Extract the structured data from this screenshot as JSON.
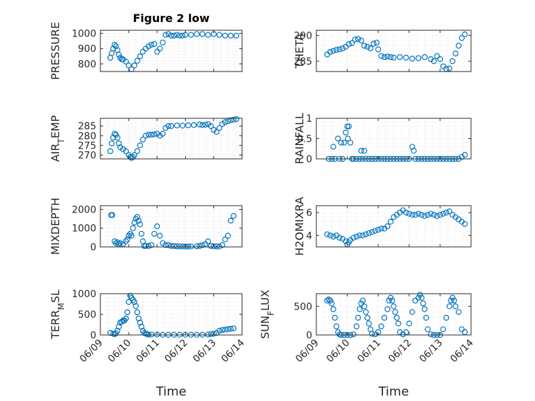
{
  "chart_data": [
    {
      "type": "scatter",
      "title": "Figure 2 low",
      "ylabel": "PRESSURE",
      "xlabel": "",
      "xlim": [
        0,
        5
      ],
      "ylim": [
        750,
        1020
      ],
      "yticks": [
        800,
        900,
        1000
      ],
      "color": "#0072bd",
      "x": [
        0.35,
        0.4,
        0.45,
        0.5,
        0.55,
        0.6,
        0.65,
        0.7,
        0.75,
        0.8,
        0.9,
        1,
        1.1,
        1.2,
        1.3,
        1.4,
        1.5,
        1.6,
        1.7,
        1.8,
        1.9,
        2,
        2.1,
        2.2,
        2.3,
        2.4,
        2.5,
        2.6,
        2.7,
        2.8,
        2.9,
        3,
        3.2,
        3.4,
        3.6,
        3.8,
        4,
        4.2,
        4.4,
        4.6,
        4.8
      ],
      "y": [
        840,
        870,
        900,
        925,
        915,
        890,
        860,
        840,
        830,
        830,
        815,
        790,
        765,
        790,
        820,
        850,
        880,
        900,
        915,
        925,
        930,
        880,
        900,
        940,
        990,
        995,
        985,
        985,
        990,
        985,
        985,
        990,
        990,
        995,
        995,
        990,
        995,
        990,
        985,
        985,
        985
      ]
    },
    {
      "type": "scatter",
      "title": "",
      "ylabel": "THETA",
      "xlabel": "",
      "xlim": [
        0,
        5
      ],
      "ylim": [
        283,
        291
      ],
      "yticks": [
        285,
        290
      ],
      "color": "#0072bd",
      "x": [
        0.35,
        0.45,
        0.55,
        0.65,
        0.75,
        0.85,
        0.95,
        1.05,
        1.15,
        1.25,
        1.35,
        1.45,
        1.55,
        1.65,
        1.75,
        1.85,
        1.95,
        2,
        2.1,
        2.2,
        2.3,
        2.4,
        2.5,
        2.7,
        2.9,
        3.1,
        3.3,
        3.5,
        3.7,
        3.8,
        3.9,
        4,
        4.1,
        4.2,
        4.3,
        4.4,
        4.5,
        4.6,
        4.7,
        4.8
      ],
      "y": [
        286.3,
        286.8,
        287,
        287.2,
        287.3,
        287.5,
        287.8,
        288.3,
        288.5,
        289.2,
        289.3,
        289,
        288,
        287.8,
        287.5,
        288.4,
        288.6,
        287.3,
        286,
        285.8,
        285.9,
        285.8,
        285.7,
        285.8,
        285.7,
        285.5,
        285.6,
        285.8,
        285.4,
        285,
        286,
        285.4,
        284,
        283.5,
        283.6,
        285,
        286.5,
        288,
        289.5,
        290.2
      ]
    },
    {
      "type": "scatter",
      "title": "",
      "ylabel": "AIR_TEMP",
      "xlabel": "",
      "xlim": [
        0,
        5
      ],
      "ylim": [
        268,
        289
      ],
      "yticks": [
        270,
        275,
        280,
        285
      ],
      "color": "#0072bd",
      "x": [
        0.35,
        0.4,
        0.45,
        0.5,
        0.55,
        0.6,
        0.65,
        0.7,
        0.8,
        0.9,
        1,
        1.05,
        1.1,
        1.15,
        1.2,
        1.3,
        1.4,
        1.5,
        1.6,
        1.7,
        1.8,
        1.9,
        2,
        2.1,
        2.2,
        2.3,
        2.4,
        2.5,
        2.7,
        2.9,
        3.1,
        3.3,
        3.5,
        3.6,
        3.7,
        3.8,
        3.9,
        4,
        4.1,
        4.2,
        4.3,
        4.4,
        4.5,
        4.6,
        4.7,
        4.8
      ],
      "y": [
        272,
        276,
        279,
        281,
        280.5,
        279,
        276,
        274,
        273,
        272,
        270,
        269,
        268.5,
        269,
        270,
        272,
        275,
        278,
        280,
        280.5,
        280.5,
        280.7,
        281,
        280,
        281,
        284,
        285,
        285,
        285.3,
        285.2,
        285.4,
        285.5,
        285.8,
        285.5,
        285.7,
        286,
        285,
        283,
        282,
        284,
        286,
        287,
        287.5,
        288,
        288.3,
        288.6
      ]
    },
    {
      "type": "scatter",
      "title": "",
      "ylabel": "RAINFALL",
      "xlabel": "",
      "xlim": [
        0,
        5
      ],
      "ylim": [
        0,
        1
      ],
      "yticks": [
        0,
        0.5,
        1
      ],
      "color": "#0072bd",
      "x": [
        0.4,
        0.5,
        0.55,
        0.6,
        0.7,
        0.75,
        0.8,
        0.85,
        0.9,
        0.95,
        1,
        1.02,
        1.05,
        1.1,
        1.15,
        1.2,
        1.3,
        1.4,
        1.45,
        1.5,
        1.55,
        1.6,
        1.7,
        1.8,
        1.9,
        2,
        2.1,
        2.2,
        2.3,
        2.4,
        2.5,
        2.6,
        2.7,
        2.8,
        2.9,
        3,
        3.1,
        3.15,
        3.2,
        3.3,
        3.4,
        3.5,
        3.6,
        3.7,
        3.8,
        3.9,
        4,
        4.1,
        4.2,
        4.3,
        4.4,
        4.5,
        4.6,
        4.7,
        4.8
      ],
      "y": [
        0,
        0,
        0.3,
        0,
        0.5,
        0,
        0.4,
        0,
        0.4,
        0.65,
        0.8,
        0.5,
        0.8,
        0.4,
        0,
        0,
        0,
        0,
        0.2,
        0,
        0.2,
        0,
        0,
        0,
        0,
        0,
        0,
        0,
        0,
        0,
        0,
        0,
        0,
        0,
        0,
        0,
        0.3,
        0.2,
        0,
        0,
        0,
        0,
        0,
        0,
        0,
        0,
        0,
        0,
        0,
        0,
        0,
        0,
        0,
        0.05,
        0.1
      ]
    },
    {
      "type": "scatter",
      "title": "",
      "ylabel": "MIXDEPTH",
      "xlabel": "",
      "xlim": [
        0,
        5
      ],
      "ylim": [
        0,
        2200
      ],
      "yticks": [
        0,
        1000,
        2000
      ],
      "color": "#0072bd",
      "x": [
        0.38,
        0.42,
        0.5,
        0.55,
        0.6,
        0.65,
        0.7,
        0.8,
        0.9,
        0.95,
        1,
        1.05,
        1.1,
        1.15,
        1.2,
        1.25,
        1.3,
        1.35,
        1.4,
        1.45,
        1.5,
        1.55,
        1.6,
        1.7,
        1.8,
        1.9,
        2,
        2.1,
        2.2,
        2.3,
        2.4,
        2.5,
        2.6,
        2.7,
        2.8,
        2.9,
        3,
        3.1,
        3.2,
        3.4,
        3.5,
        3.6,
        3.7,
        3.8,
        3.9,
        4,
        4.1,
        4.2,
        4.3,
        4.4,
        4.5,
        4.6,
        4.7
      ],
      "y": [
        1700,
        1700,
        300,
        200,
        250,
        150,
        200,
        150,
        300,
        400,
        600,
        700,
        600,
        1000,
        1300,
        1500,
        1600,
        1400,
        1200,
        700,
        300,
        50,
        50,
        50,
        100,
        700,
        1100,
        600,
        200,
        100,
        100,
        50,
        50,
        30,
        30,
        20,
        20,
        20,
        20,
        30,
        50,
        100,
        150,
        300,
        50,
        30,
        30,
        20,
        100,
        400,
        600,
        1400,
        1650
      ]
    },
    {
      "type": "scatter",
      "title": "",
      "ylabel": "H2OMIXRA",
      "xlabel": "",
      "xlim": [
        0,
        5
      ],
      "ylim": [
        3,
        6.6
      ],
      "yticks": [
        4,
        6
      ],
      "color": "#0072bd",
      "x": [
        0.35,
        0.45,
        0.55,
        0.65,
        0.75,
        0.85,
        0.95,
        1,
        1.05,
        1.1,
        1.2,
        1.3,
        1.4,
        1.5,
        1.6,
        1.7,
        1.8,
        1.9,
        2,
        2.1,
        2.2,
        2.3,
        2.4,
        2.5,
        2.6,
        2.7,
        2.8,
        2.9,
        3,
        3.1,
        3.2,
        3.3,
        3.4,
        3.5,
        3.6,
        3.7,
        3.8,
        3.9,
        4,
        4.1,
        4.2,
        4.3,
        4.4,
        4.5,
        4.6,
        4.7,
        4.8
      ],
      "y": [
        4.1,
        4,
        3.9,
        4,
        3.8,
        3.7,
        3.5,
        3.2,
        3.4,
        3.6,
        3.8,
        3.9,
        4,
        4,
        4.1,
        4.2,
        4.3,
        4.4,
        4.5,
        4.6,
        4.6,
        4.8,
        5.2,
        5.6,
        5.8,
        6,
        6.2,
        6,
        5.9,
        5.8,
        5.8,
        5.9,
        5.8,
        5.7,
        5.8,
        5.9,
        5.8,
        5.7,
        5.8,
        5.9,
        6,
        6.1,
        5.8,
        5.6,
        5.4,
        5.2,
        5
      ]
    },
    {
      "type": "scatter",
      "title": "",
      "ylabel": "TERR_MSL",
      "xlabel": "Time",
      "xlim": [
        0,
        5
      ],
      "ylim": [
        0,
        1000
      ],
      "yticks": [
        0,
        500,
        1000
      ],
      "xticks": [
        "06/09",
        "06/10",
        "06/11",
        "06/12",
        "06/13",
        "06/14"
      ],
      "color": "#0072bd",
      "x": [
        0.35,
        0.45,
        0.5,
        0.55,
        0.6,
        0.65,
        0.7,
        0.75,
        0.8,
        0.85,
        0.9,
        0.95,
        1,
        1.05,
        1.1,
        1.15,
        1.2,
        1.25,
        1.3,
        1.35,
        1.4,
        1.45,
        1.5,
        1.55,
        1.6,
        1.65,
        1.7,
        1.8,
        2,
        2.2,
        2.4,
        2.6,
        2.8,
        3,
        3.2,
        3.4,
        3.6,
        3.8,
        3.9,
        4,
        4.1,
        4.2,
        4.3,
        4.4,
        4.5,
        4.6,
        4.7
      ],
      "y": [
        50,
        30,
        20,
        40,
        100,
        200,
        300,
        320,
        350,
        350,
        400,
        550,
        800,
        950,
        900,
        850,
        800,
        700,
        550,
        400,
        300,
        200,
        100,
        50,
        30,
        20,
        10,
        10,
        10,
        5,
        5,
        5,
        5,
        5,
        5,
        5,
        5,
        10,
        20,
        30,
        50,
        100,
        120,
        130,
        140,
        150,
        160
      ]
    },
    {
      "type": "scatter",
      "title": "",
      "ylabel": "SUN_FLUX",
      "xlabel": "Time",
      "xlim": [
        0,
        5
      ],
      "ylim": [
        0,
        720
      ],
      "yticks": [
        0,
        500
      ],
      "xticks": [
        "06/09",
        "06/10",
        "06/11",
        "06/12",
        "06/13",
        "06/14"
      ],
      "color": "#0072bd",
      "x": [
        0.35,
        0.4,
        0.45,
        0.5,
        0.55,
        0.6,
        0.65,
        0.7,
        0.75,
        0.8,
        0.9,
        1,
        1.1,
        1.2,
        1.3,
        1.35,
        1.4,
        1.45,
        1.5,
        1.55,
        1.6,
        1.65,
        1.7,
        1.75,
        1.8,
        1.9,
        2,
        2.1,
        2.2,
        2.3,
        2.35,
        2.4,
        2.45,
        2.5,
        2.55,
        2.6,
        2.65,
        2.7,
        2.8,
        2.9,
        3,
        3.1,
        3.2,
        3.3,
        3.35,
        3.4,
        3.45,
        3.5,
        3.55,
        3.6,
        3.7,
        3.8,
        3.9,
        4,
        4.1,
        4.2,
        4.3,
        4.35,
        4.4,
        4.45,
        4.5,
        4.6,
        4.7,
        4.8
      ],
      "y": [
        600,
        620,
        600,
        550,
        450,
        300,
        150,
        50,
        10,
        0,
        0,
        0,
        0,
        10,
        150,
        300,
        450,
        550,
        600,
        500,
        400,
        300,
        200,
        100,
        20,
        10,
        50,
        150,
        300,
        450,
        600,
        650,
        600,
        500,
        400,
        300,
        200,
        50,
        10,
        50,
        200,
        400,
        600,
        650,
        700,
        650,
        550,
        450,
        300,
        100,
        10,
        0,
        0,
        0,
        100,
        300,
        500,
        600,
        650,
        600,
        500,
        400,
        100,
        50
      ]
    }
  ]
}
